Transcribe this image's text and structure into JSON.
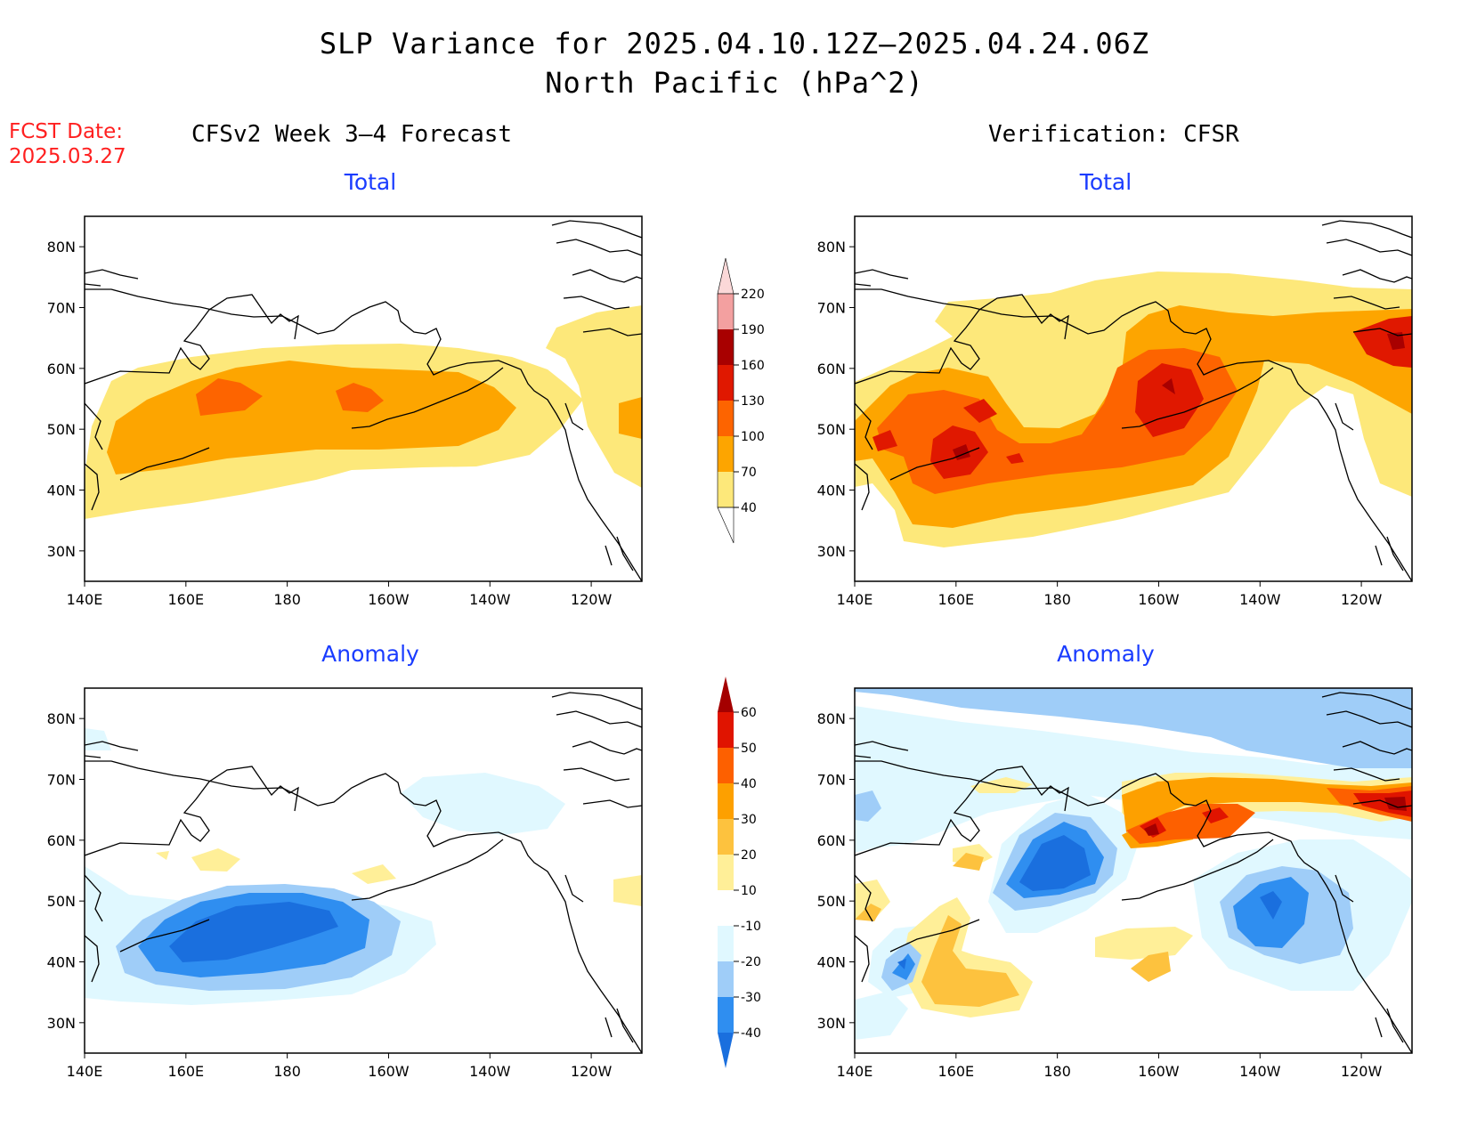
{
  "header": {
    "title_line1": "SLP Variance for 2025.04.10.12Z–2025.04.24.06Z",
    "title_line2": "North Pacific (hPa^2)"
  },
  "fcst": {
    "label": "FCST Date:",
    "date": "2025.03.27"
  },
  "columns": {
    "left": "CFSv2 Week 3–4 Forecast",
    "right": "Verification: CFSR"
  },
  "panels": {
    "tl": "Total",
    "tr": "Total",
    "bl": "Anomaly",
    "br": "Anomaly"
  },
  "axes": {
    "lat_labels": [
      "80N",
      "70N",
      "60N",
      "50N",
      "40N",
      "30N"
    ],
    "lat_values": [
      80,
      70,
      60,
      50,
      40,
      30
    ],
    "lon_labels": [
      "140E",
      "160E",
      "180",
      "160W",
      "140W",
      "120W"
    ],
    "lon_values": [
      140,
      160,
      180,
      200,
      220,
      240
    ],
    "lon_range": [
      140,
      250
    ],
    "lat_range": [
      25,
      85
    ]
  },
  "colorbars": {
    "total": {
      "levels": [
        "40",
        "70",
        "100",
        "130",
        "160",
        "190",
        "220"
      ],
      "colors": [
        "#fde87a",
        "#fda500",
        "#fd6400",
        "#e01800",
        "#a80000",
        "#f3a0a0",
        "#fbd8d8"
      ],
      "low_color": "#ffffff"
    },
    "anomaly": {
      "levels": [
        "-40",
        "-30",
        "-20",
        "-10",
        "10",
        "20",
        "30",
        "40",
        "50",
        "60"
      ],
      "colors": [
        "#1a6fde",
        "#2f8ef0",
        "#9fcdf8",
        "#e0f8ff",
        "#ffffff",
        "#ffef98",
        "#fdc23e",
        "#fda000",
        "#fd6000",
        "#e01400",
        "#a40000"
      ]
    }
  }
}
